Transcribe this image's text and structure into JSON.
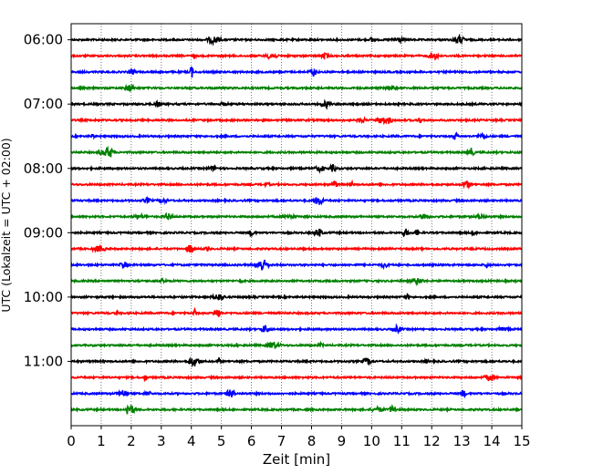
{
  "chart_data": {
    "type": "line",
    "subtype": "helicorder",
    "xlabel": "Zeit  [min]",
    "ylabel": "UTC (Lokalzeit = UTC + 02:00)",
    "xlim": [
      0,
      15
    ],
    "x_ticks": [
      "0",
      "1",
      "2",
      "3",
      "4",
      "5",
      "6",
      "7",
      "8",
      "9",
      "10",
      "11",
      "12",
      "13",
      "14",
      "15"
    ],
    "grid_x": true,
    "grid_style": "dotted",
    "ylim_minutes": [
      345,
      720
    ],
    "y_tick_labels": [
      "06:00",
      "07:00",
      "08:00",
      "09:00",
      "10:00",
      "11:00"
    ],
    "y_tick_minutes": [
      360,
      420,
      480,
      540,
      600,
      660
    ],
    "trace_interval_minutes": 15,
    "trace_start_minutes": [
      360,
      375,
      390,
      405,
      420,
      435,
      450,
      465,
      480,
      495,
      510,
      525,
      540,
      555,
      570,
      585,
      600,
      615,
      630,
      645,
      660,
      675,
      690,
      705
    ],
    "trace_colors": [
      "#000000",
      "#ff0000",
      "#0000ff",
      "#008000"
    ],
    "colors": {
      "frame": "#000000",
      "grid": "#555555"
    }
  }
}
